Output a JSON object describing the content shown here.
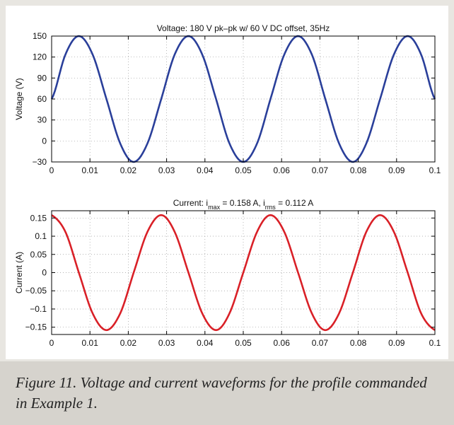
{
  "chart_data": [
    {
      "type": "line",
      "title": "Voltage: 180 V pk–pk w/ 60 V DC offset, 35Hz",
      "xlabel": "",
      "ylabel": "Voltage (V)",
      "xlim": [
        0,
        0.1
      ],
      "ylim": [
        -30,
        150
      ],
      "x_ticks": [
        0,
        0.01,
        0.02,
        0.03,
        0.04,
        0.05,
        0.06,
        0.07,
        0.08,
        0.09,
        0.1
      ],
      "x_tick_labels": [
        "0",
        "0.01",
        "0.02",
        "0.03",
        "0.04",
        "0.05",
        "0.06",
        "0.07",
        "0.08",
        "0.09",
        "0.1"
      ],
      "y_ticks": [
        -30,
        0,
        30,
        60,
        90,
        120,
        150
      ],
      "y_tick_labels": [
        "−30",
        "0",
        "30",
        "60",
        "90",
        "120",
        "150"
      ],
      "grid": true,
      "color": "#2a3f9a",
      "series": [
        {
          "x": [
            0,
            0.0036,
            0.0071,
            0.0107,
            0.0143,
            0.0179,
            0.0214,
            0.025,
            0.0286,
            0.0321,
            0.0357,
            0.0393,
            0.0429,
            0.0464,
            0.05,
            0.0536,
            0.0571,
            0.0607,
            0.0643,
            0.0679,
            0.0714,
            0.075,
            0.0786,
            0.0821,
            0.0857,
            0.0893,
            0.0929,
            0.0964,
            0.1
          ],
          "values": [
            60,
            123.6,
            150,
            123.6,
            60,
            -3.6,
            -30,
            -3.6,
            60,
            123.6,
            150,
            123.6,
            60,
            -3.6,
            -30,
            -3.6,
            60,
            123.6,
            150,
            123.6,
            60,
            -3.6,
            -30,
            -3.6,
            60,
            123.6,
            150,
            123.6,
            60
          ]
        }
      ]
    },
    {
      "type": "line",
      "title_parts": [
        "Current: i",
        "max",
        " = 0.158 A, i",
        "rms",
        " = 0.112 A"
      ],
      "xlabel": "",
      "ylabel": "Current (A)",
      "xlim": [
        0,
        0.1
      ],
      "ylim": [
        -0.17,
        0.17
      ],
      "x_ticks": [
        0,
        0.01,
        0.02,
        0.03,
        0.04,
        0.05,
        0.06,
        0.07,
        0.08,
        0.09,
        0.1
      ],
      "x_tick_labels": [
        "0",
        "0.01",
        "0.02",
        "0.03",
        "0.04",
        "0.05",
        "0.06",
        "0.07",
        "0.08",
        "0.09",
        "0.1"
      ],
      "y_ticks": [
        -0.15,
        -0.1,
        -0.05,
        0,
        0.05,
        0.1,
        0.15
      ],
      "y_tick_labels": [
        "−0.15",
        "−0.1",
        "−0.05",
        "0",
        "0.05",
        "0.1",
        "0.15"
      ],
      "grid": true,
      "color": "#d92027",
      "series": [
        {
          "x": [
            0,
            0.0036,
            0.0071,
            0.0107,
            0.0143,
            0.0179,
            0.0214,
            0.025,
            0.0286,
            0.0321,
            0.0357,
            0.0393,
            0.0429,
            0.0464,
            0.05,
            0.0536,
            0.0571,
            0.0607,
            0.0643,
            0.0679,
            0.0714,
            0.075,
            0.0786,
            0.0821,
            0.0857,
            0.0893,
            0.0929,
            0.0964,
            0.1
          ],
          "values": [
            0.158,
            0.112,
            0,
            -0.112,
            -0.158,
            -0.112,
            0,
            0.112,
            0.158,
            0.112,
            0,
            -0.112,
            -0.158,
            -0.112,
            0,
            0.112,
            0.158,
            0.112,
            0,
            -0.112,
            -0.158,
            -0.112,
            0,
            0.112,
            0.158,
            0.112,
            0,
            -0.112,
            -0.158
          ]
        }
      ]
    }
  ],
  "caption": "Figure 11. Voltage and current waveforms for the profile commanded in Example 1."
}
